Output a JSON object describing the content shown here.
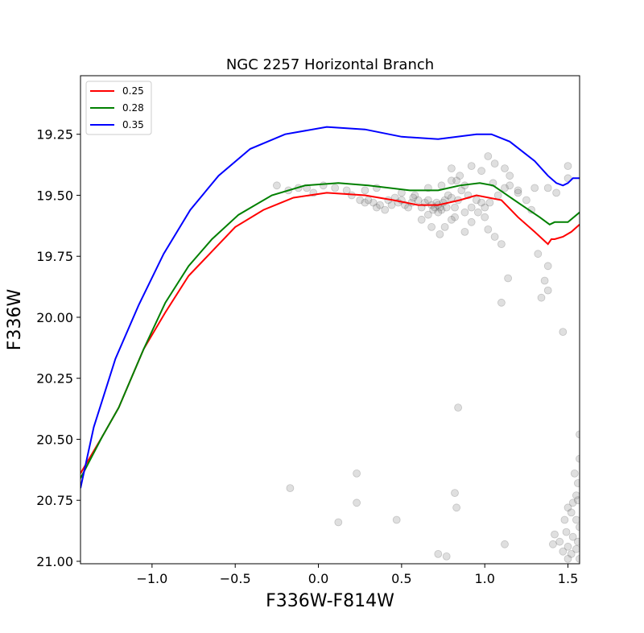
{
  "chart_data": {
    "type": "line",
    "title": "NGC 2257 Horizontal Branch",
    "xlabel": "F336W-F814W",
    "ylabel": "F336W",
    "xlim": [
      -1.43,
      1.57
    ],
    "ylim": [
      21.01,
      19.01
    ],
    "y_inverted": true,
    "xticks": [
      -1.0,
      -0.5,
      0.0,
      0.5,
      1.0,
      1.5
    ],
    "xtick_labels": [
      "−1.0",
      "−0.5",
      "0.0",
      "0.5",
      "1.0",
      "1.5"
    ],
    "yticks": [
      19.25,
      19.5,
      19.75,
      20.0,
      20.25,
      20.5,
      20.75,
      21.0
    ],
    "ytick_labels": [
      "19.25",
      "19.50",
      "19.75",
      "20.00",
      "20.25",
      "20.50",
      "20.75",
      "21.00"
    ],
    "grid": false,
    "legend_position": "upper-left",
    "series": [
      {
        "name": "0.25",
        "color": "#ff0000",
        "x": [
          -1.43,
          -1.3,
          -1.2,
          -1.05,
          -0.92,
          -0.78,
          -0.64,
          -0.5,
          -0.33,
          -0.15,
          0.05,
          0.28,
          0.45,
          0.6,
          0.72,
          0.85,
          0.95,
          1.1,
          1.2,
          1.3,
          1.38,
          1.4,
          1.42,
          1.47,
          1.52,
          1.57
        ],
        "y": [
          20.64,
          20.49,
          20.37,
          20.13,
          19.98,
          19.83,
          19.73,
          19.63,
          19.56,
          19.51,
          19.49,
          19.5,
          19.52,
          19.54,
          19.54,
          19.52,
          19.5,
          19.52,
          19.59,
          19.65,
          19.7,
          19.68,
          19.68,
          19.67,
          19.65,
          19.62
        ]
      },
      {
        "name": "0.28",
        "color": "#008000",
        "x": [
          -1.43,
          -1.3,
          -1.2,
          -1.05,
          -0.92,
          -0.78,
          -0.64,
          -0.48,
          -0.28,
          -0.08,
          0.12,
          0.3,
          0.55,
          0.72,
          0.85,
          0.97,
          1.05,
          1.2,
          1.33,
          1.39,
          1.42,
          1.5,
          1.57
        ],
        "y": [
          20.66,
          20.49,
          20.37,
          20.13,
          19.94,
          19.79,
          19.68,
          19.58,
          19.5,
          19.46,
          19.45,
          19.46,
          19.48,
          19.48,
          19.46,
          19.45,
          19.46,
          19.53,
          19.59,
          19.62,
          19.61,
          19.61,
          19.57
        ]
      },
      {
        "name": "0.35",
        "color": "#0000ff",
        "x": [
          -1.43,
          -1.35,
          -1.22,
          -1.08,
          -0.93,
          -0.77,
          -0.6,
          -0.41,
          -0.2,
          0.05,
          0.28,
          0.5,
          0.72,
          0.95,
          1.04,
          1.15,
          1.3,
          1.38,
          1.43,
          1.47,
          1.5,
          1.53,
          1.57
        ],
        "y": [
          20.7,
          20.45,
          20.17,
          19.95,
          19.74,
          19.56,
          19.42,
          19.31,
          19.25,
          19.22,
          19.23,
          19.26,
          19.27,
          19.25,
          19.25,
          19.28,
          19.36,
          19.42,
          19.45,
          19.46,
          19.45,
          19.43,
          19.43
        ]
      }
    ],
    "scatter": {
      "color": "#808080",
      "opacity": 0.25,
      "points": [
        [
          -0.25,
          19.46
        ],
        [
          -0.18,
          19.48
        ],
        [
          -0.12,
          19.47
        ],
        [
          -0.07,
          19.47
        ],
        [
          -0.03,
          19.49
        ],
        [
          0.03,
          19.46
        ],
        [
          0.1,
          19.47
        ],
        [
          0.17,
          19.48
        ],
        [
          0.2,
          19.5
        ],
        [
          0.25,
          19.52
        ],
        [
          0.28,
          19.53
        ],
        [
          0.3,
          19.52
        ],
        [
          0.33,
          19.53
        ],
        [
          0.35,
          19.55
        ],
        [
          0.37,
          19.54
        ],
        [
          0.4,
          19.56
        ],
        [
          0.42,
          19.52
        ],
        [
          0.44,
          19.54
        ],
        [
          0.46,
          19.51
        ],
        [
          0.48,
          19.53
        ],
        [
          0.5,
          19.52
        ],
        [
          0.52,
          19.54
        ],
        [
          0.54,
          19.55
        ],
        [
          0.56,
          19.53
        ],
        [
          0.58,
          19.5
        ],
        [
          0.6,
          19.52
        ],
        [
          0.62,
          19.55
        ],
        [
          0.64,
          19.53
        ],
        [
          0.66,
          19.52
        ],
        [
          0.68,
          19.54
        ],
        [
          0.69,
          19.56
        ],
        [
          0.7,
          19.55
        ],
        [
          0.71,
          19.53
        ],
        [
          0.72,
          19.54
        ],
        [
          0.73,
          19.55
        ],
        [
          0.74,
          19.56
        ],
        [
          0.75,
          19.53
        ],
        [
          0.76,
          19.52
        ],
        [
          0.77,
          19.55
        ],
        [
          0.78,
          19.5
        ],
        [
          0.8,
          19.51
        ],
        [
          0.82,
          19.55
        ],
        [
          0.84,
          19.52
        ],
        [
          0.86,
          19.48
        ],
        [
          0.88,
          19.46
        ],
        [
          0.9,
          19.5
        ],
        [
          0.92,
          19.55
        ],
        [
          0.95,
          19.52
        ],
        [
          0.98,
          19.53
        ],
        [
          1.0,
          19.55
        ],
        [
          1.03,
          19.53
        ],
        [
          1.05,
          19.45
        ],
        [
          1.08,
          19.5
        ],
        [
          1.12,
          19.47
        ],
        [
          1.15,
          19.46
        ],
        [
          1.2,
          19.48
        ],
        [
          1.25,
          19.52
        ],
        [
          1.3,
          19.47
        ],
        [
          0.35,
          19.47
        ],
        [
          0.28,
          19.48
        ],
        [
          0.5,
          19.49
        ],
        [
          0.57,
          19.51
        ],
        [
          0.66,
          19.47
        ],
        [
          0.74,
          19.46
        ],
        [
          0.83,
          19.44
        ],
        [
          0.82,
          19.59
        ],
        [
          0.72,
          19.57
        ],
        [
          0.66,
          19.58
        ],
        [
          0.62,
          19.6
        ],
        [
          0.68,
          19.63
        ],
        [
          0.76,
          19.63
        ],
        [
          0.73,
          19.66
        ],
        [
          0.8,
          19.6
        ],
        [
          0.88,
          19.57
        ],
        [
          0.92,
          19.61
        ],
        [
          0.96,
          19.57
        ],
        [
          1.0,
          19.59
        ],
        [
          0.88,
          19.65
        ],
        [
          1.02,
          19.64
        ],
        [
          1.06,
          19.67
        ],
        [
          1.1,
          19.7
        ],
        [
          1.32,
          19.74
        ],
        [
          1.38,
          19.79
        ],
        [
          1.36,
          19.85
        ],
        [
          1.38,
          19.89
        ],
        [
          1.34,
          19.92
        ],
        [
          1.14,
          19.84
        ],
        [
          1.1,
          19.94
        ],
        [
          1.47,
          20.06
        ],
        [
          0.8,
          19.39
        ],
        [
          0.92,
          19.38
        ],
        [
          0.98,
          19.4
        ],
        [
          1.02,
          19.34
        ],
        [
          1.06,
          19.37
        ],
        [
          1.12,
          19.39
        ],
        [
          1.15,
          19.42
        ],
        [
          1.2,
          19.49
        ],
        [
          1.28,
          19.56
        ],
        [
          1.38,
          19.47
        ],
        [
          1.43,
          19.49
        ],
        [
          1.5,
          19.43
        ],
        [
          1.5,
          19.38
        ],
        [
          0.85,
          19.42
        ],
        [
          0.8,
          19.44
        ],
        [
          0.84,
          20.37
        ],
        [
          -0.17,
          20.7
        ],
        [
          0.23,
          20.64
        ],
        [
          0.23,
          20.76
        ],
        [
          0.12,
          20.84
        ],
        [
          0.47,
          20.83
        ],
        [
          0.82,
          20.72
        ],
        [
          0.83,
          20.78
        ],
        [
          1.12,
          20.93
        ],
        [
          0.72,
          20.97
        ],
        [
          0.77,
          20.98
        ],
        [
          1.57,
          20.48
        ],
        [
          1.57,
          20.58
        ],
        [
          1.54,
          20.64
        ],
        [
          1.56,
          20.68
        ],
        [
          1.55,
          20.73
        ],
        [
          1.53,
          20.76
        ],
        [
          1.56,
          20.75
        ],
        [
          1.5,
          20.78
        ],
        [
          1.52,
          20.8
        ],
        [
          1.55,
          20.83
        ],
        [
          1.57,
          20.86
        ],
        [
          1.48,
          20.83
        ],
        [
          1.49,
          20.88
        ],
        [
          1.53,
          20.9
        ],
        [
          1.56,
          20.92
        ],
        [
          1.42,
          20.89
        ],
        [
          1.45,
          20.92
        ],
        [
          1.5,
          20.94
        ],
        [
          1.55,
          20.95
        ],
        [
          1.47,
          20.96
        ],
        [
          1.52,
          20.97
        ],
        [
          1.57,
          20.99
        ],
        [
          1.41,
          20.93
        ],
        [
          1.5,
          20.99
        ]
      ]
    }
  }
}
